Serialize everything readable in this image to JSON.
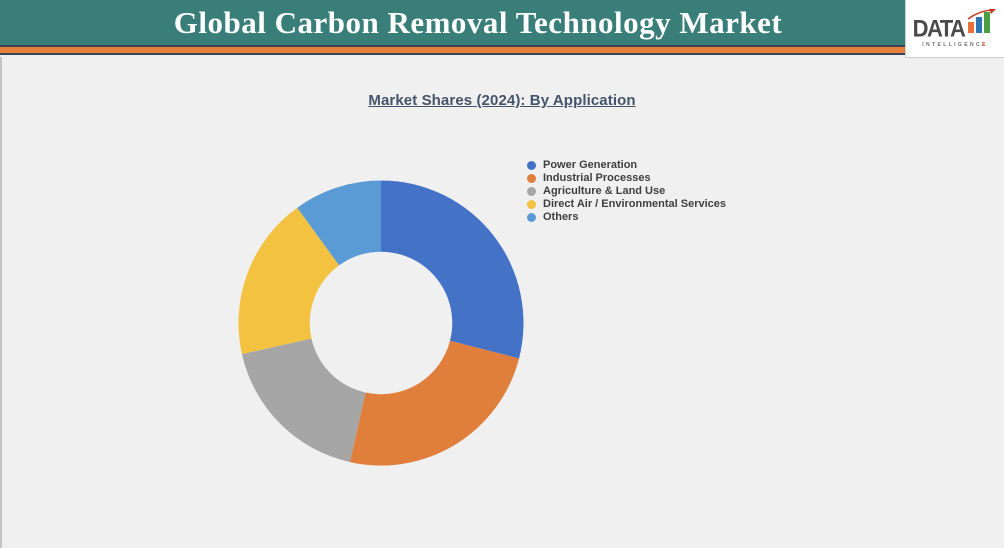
{
  "theme": {
    "header_teal": "#3A7E7A",
    "header_stripe_orange": "#E5813C",
    "header_line_navy": "#3A4458",
    "page_bg": "#F0F0F1",
    "title_blue": "#44546A",
    "legend_text": "#3F3F3F"
  },
  "header": {
    "title": "Global Carbon Removal Technology Market",
    "logo": {
      "brand": "DATA",
      "subtitle_main": "INTELLIGENC",
      "subtitle_accent": "E"
    }
  },
  "main": {
    "chart_title": "Market Shares (2024): By Application"
  },
  "chart_data": {
    "type": "pie",
    "subtype": "donut",
    "title": "Market Shares (2024): By Application",
    "legend_position": "top-right",
    "start_angle_deg": 0,
    "inner_radius_ratio": 0.5,
    "values_are_estimated_percent": true,
    "series": [
      {
        "name": "Power Generation",
        "value": 29,
        "color": "#4472C7"
      },
      {
        "name": "Industrial Processes",
        "value": 24.5,
        "color": "#E07E3C"
      },
      {
        "name": "Agriculture & Land Use",
        "value": 18,
        "color": "#A6A6A6"
      },
      {
        "name": "Direct Air / Environmental Services",
        "value": 18.5,
        "color": "#F2C240"
      },
      {
        "name": "Others",
        "value": 10,
        "color": "#5B9BD5"
      }
    ]
  }
}
